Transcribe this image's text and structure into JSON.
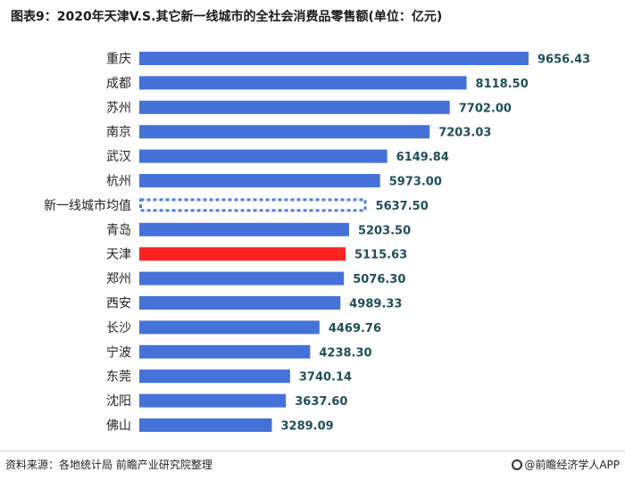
{
  "title": "图表9：2020年天津V.S.其它新一线城市的全社会消费品零售额(单位：亿元)",
  "source": "资料来源：各地统计局 前瞻产业研究院整理",
  "brand": "@前瞻经济学人APP",
  "colors": {
    "bar": "#4472d9",
    "highlight": "#ff2020",
    "average_outline": "#4a7fdc",
    "value_text": "#1f4e5a",
    "category_text": "#222222"
  },
  "chart_data": {
    "type": "bar",
    "orientation": "horizontal",
    "categories": [
      "重庆",
      "成都",
      "苏州",
      "南京",
      "武汉",
      "杭州",
      "新一线城市均值",
      "青岛",
      "天津",
      "郑州",
      "西安",
      "长沙",
      "宁波",
      "东莞",
      "沈阳",
      "佛山"
    ],
    "values": [
      9656.43,
      8118.5,
      7702.0,
      7203.03,
      6149.84,
      5973.0,
      5637.5,
      5203.5,
      5115.63,
      5076.3,
      4989.33,
      4469.76,
      4238.3,
      3740.14,
      3637.6,
      3289.09
    ],
    "value_labels": [
      "9656.43",
      "8118.50",
      "7702.00",
      "7203.03",
      "6149.84",
      "5973.00",
      "5637.50",
      "5203.50",
      "5115.63",
      "5076.30",
      "4989.33",
      "4469.76",
      "4238.30",
      "3740.14",
      "3637.60",
      "3289.09"
    ],
    "highlight_category": "天津",
    "average_category": "新一线城市均值",
    "xlim": [
      0,
      9656.43
    ],
    "grid": false,
    "legend": "none"
  }
}
